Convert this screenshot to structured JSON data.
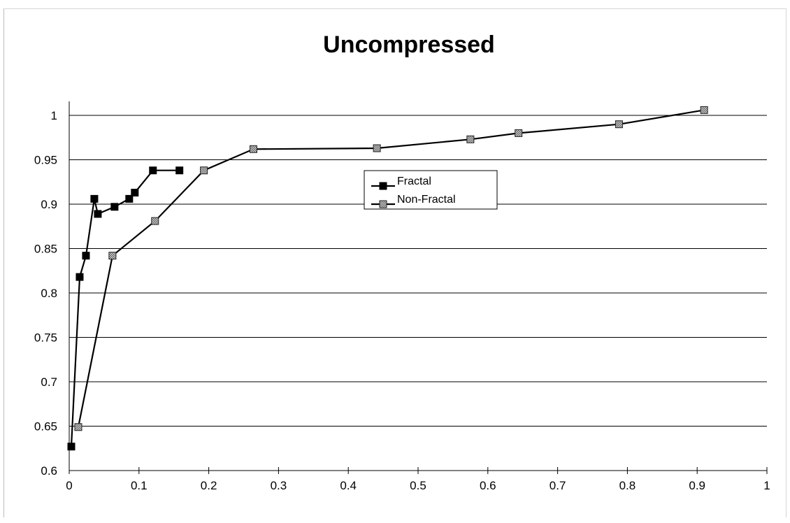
{
  "chart_data": {
    "type": "line",
    "title": "Uncompressed",
    "xlabel": "",
    "ylabel": "",
    "xlim": [
      0,
      1
    ],
    "ylim": [
      0.6,
      1.0
    ],
    "x_ticks": [
      "0",
      "0.1",
      "0.2",
      "0.3",
      "0.4",
      "0.5",
      "0.6",
      "0.7",
      "0.8",
      "0.9",
      "1"
    ],
    "y_ticks": [
      "0.6",
      "0.65",
      "0.7",
      "0.75",
      "0.8",
      "0.85",
      "0.9",
      "0.95",
      "1"
    ],
    "grid": "horizontal",
    "legend_position": "center-right",
    "series": [
      {
        "name": "Fractal",
        "marker": "filled-square",
        "color": "#000000",
        "points": [
          [
            0.003,
            0.627
          ],
          [
            0.015,
            0.818
          ],
          [
            0.024,
            0.842
          ],
          [
            0.036,
            0.906
          ],
          [
            0.041,
            0.889
          ],
          [
            0.065,
            0.897
          ],
          [
            0.086,
            0.906
          ],
          [
            0.094,
            0.913
          ],
          [
            0.12,
            0.938
          ],
          [
            0.158,
            0.938
          ]
        ]
      },
      {
        "name": "Non-Fractal",
        "marker": "hatched-square",
        "color": "#000000",
        "points": [
          [
            0.013,
            0.649
          ],
          [
            0.062,
            0.842
          ],
          [
            0.123,
            0.881
          ],
          [
            0.193,
            0.938
          ],
          [
            0.264,
            0.962
          ],
          [
            0.441,
            0.963
          ],
          [
            0.575,
            0.973
          ],
          [
            0.644,
            0.98
          ],
          [
            0.788,
            0.99
          ],
          [
            0.91,
            1.006
          ]
        ]
      }
    ]
  }
}
